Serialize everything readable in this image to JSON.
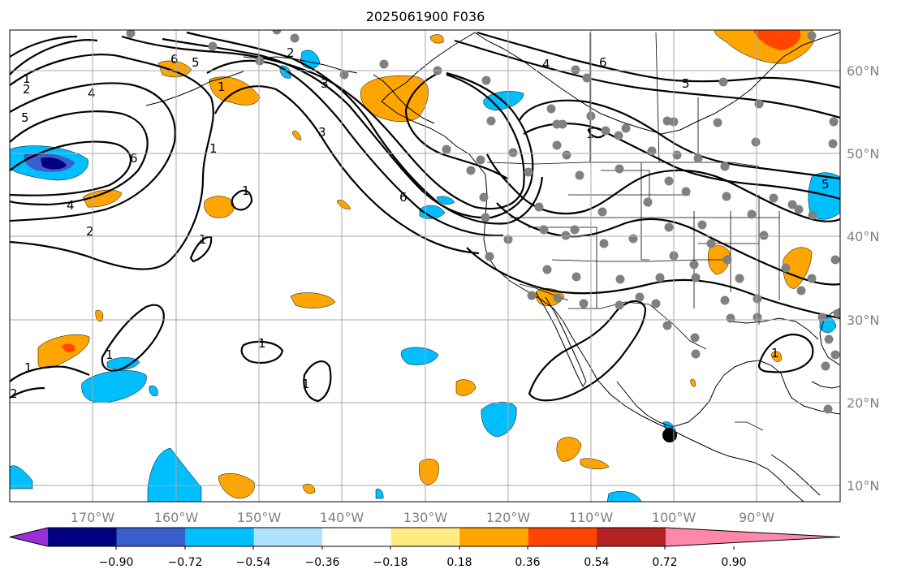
{
  "title": "2025061900 F036",
  "map": {
    "lon_labels": [
      "170°W",
      "160°W",
      "150°W",
      "140°W",
      "130°W",
      "120°W",
      "110°W",
      "100°W",
      "90°W"
    ],
    "lat_labels": [
      "60°N",
      "50°N",
      "40°N",
      "30°N",
      "20°N",
      "10°N"
    ],
    "grid": true,
    "colors": {
      "grid": "#aaaaaa",
      "tick_text": "#808080",
      "contour": "#000000",
      "station": "#808080"
    }
  },
  "colorbar": {
    "ticks": [
      "−0.90",
      "−0.72",
      "−0.54",
      "−0.36",
      "−0.18",
      "0.18",
      "0.36",
      "0.54",
      "0.72",
      "0.90"
    ],
    "colors": [
      "#9b30d9",
      "#000080",
      "#3a5fcd",
      "#00bfff",
      "#b0e2ff",
      "#ffffff",
      "#ffeb80",
      "#ffa500",
      "#ff4500",
      "#b22222",
      "#ff88aa"
    ],
    "extend": "both"
  },
  "contour_labels": [
    "1",
    "2",
    "4",
    "5",
    "6",
    "5",
    "6",
    "2",
    "3",
    "3",
    "1",
    "6",
    "4",
    "6",
    "5",
    "1",
    "1",
    "1",
    "1",
    "1",
    "1",
    "1",
    "2",
    "5",
    "4",
    "2",
    "1",
    "1"
  ]
}
